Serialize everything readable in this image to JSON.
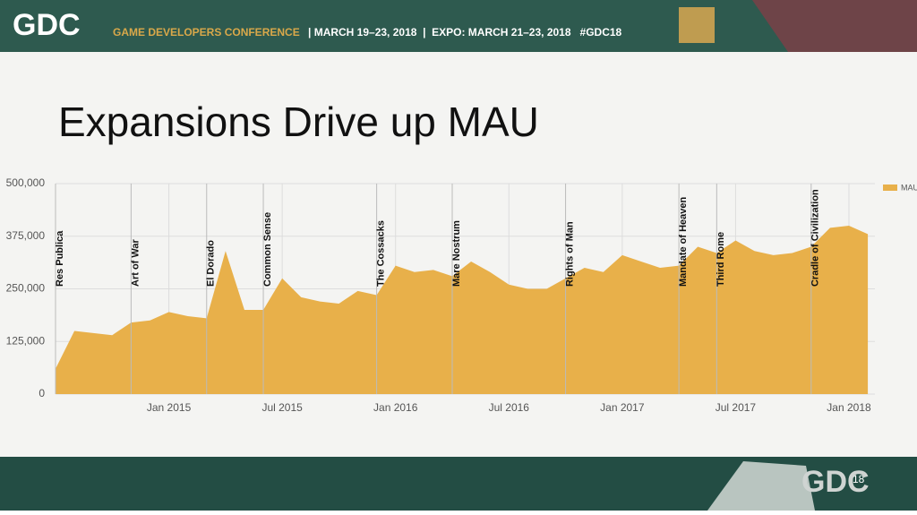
{
  "header": {
    "logo": "GDC",
    "conference": "GAME DEVELOPERS CONFERENCE",
    "dates": "| MARCH 19–23, 2018  |  EXPO: MARCH 21–23, 2018   #GDC18"
  },
  "footer": {
    "logo": "GDC",
    "edition": "18"
  },
  "chart_data": {
    "type": "area",
    "title": "Expansions Drive up MAU",
    "x": [
      "2014-07",
      "2014-08",
      "2014-09",
      "2014-10",
      "2014-11",
      "2014-12",
      "2015-01",
      "2015-02",
      "2015-03",
      "2015-04",
      "2015-05",
      "2015-06",
      "2015-07",
      "2015-08",
      "2015-09",
      "2015-10",
      "2015-11",
      "2015-12",
      "2016-01",
      "2016-02",
      "2016-03",
      "2016-04",
      "2016-05",
      "2016-06",
      "2016-07",
      "2016-08",
      "2016-09",
      "2016-10",
      "2016-11",
      "2016-12",
      "2017-01",
      "2017-02",
      "2017-03",
      "2017-04",
      "2017-05",
      "2017-06",
      "2017-07",
      "2017-08",
      "2017-09",
      "2017-10",
      "2017-11",
      "2017-12",
      "2018-01",
      "2018-02"
    ],
    "series": [
      {
        "name": "MAU",
        "color": "#e8b04a",
        "values": [
          60000,
          150000,
          145000,
          140000,
          170000,
          175000,
          195000,
          185000,
          180000,
          340000,
          200000,
          200000,
          275000,
          230000,
          220000,
          215000,
          245000,
          235000,
          305000,
          290000,
          295000,
          280000,
          315000,
          290000,
          260000,
          250000,
          250000,
          275000,
          300000,
          290000,
          330000,
          315000,
          300000,
          305000,
          350000,
          335000,
          365000,
          340000,
          330000,
          335000,
          350000,
          395000,
          400000,
          380000
        ]
      }
    ],
    "ylim": [
      0,
      500000
    ],
    "yticks": [
      0,
      {
        "value": 125000,
        "label": "125,000"
      },
      {
        "value": 250000,
        "label": "250,000"
      },
      {
        "value": 375000,
        "label": "375,000"
      },
      {
        "value": 500000,
        "label": "500,000"
      }
    ],
    "xticks": [
      {
        "value": "2015-01",
        "label": "Jan 2015"
      },
      {
        "value": "2015-07",
        "label": "Jul 2015"
      },
      {
        "value": "2016-01",
        "label": "Jan 2016"
      },
      {
        "value": "2016-07",
        "label": "Jul 2016"
      },
      {
        "value": "2017-01",
        "label": "Jan 2017"
      },
      {
        "value": "2017-07",
        "label": "Jul 2017"
      },
      {
        "value": "2018-01",
        "label": "Jan 2018"
      }
    ],
    "annotations": [
      {
        "x": "2014-07",
        "text": "Res Publica"
      },
      {
        "x": "2014-11",
        "text": "Art of War"
      },
      {
        "x": "2015-03",
        "text": "El Dorado"
      },
      {
        "x": "2015-06",
        "text": "Common Sense"
      },
      {
        "x": "2015-12",
        "text": "The Cossacks"
      },
      {
        "x": "2016-04",
        "text": "Mare Nostrum"
      },
      {
        "x": "2016-10",
        "text": "Rights of Man"
      },
      {
        "x": "2017-04",
        "text": "Mandate of Heaven"
      },
      {
        "x": "2017-06",
        "text": "Third Rome"
      },
      {
        "x": "2017-11",
        "text": "Cradle of Civilization"
      }
    ],
    "grid": true,
    "legend": "top-right"
  }
}
